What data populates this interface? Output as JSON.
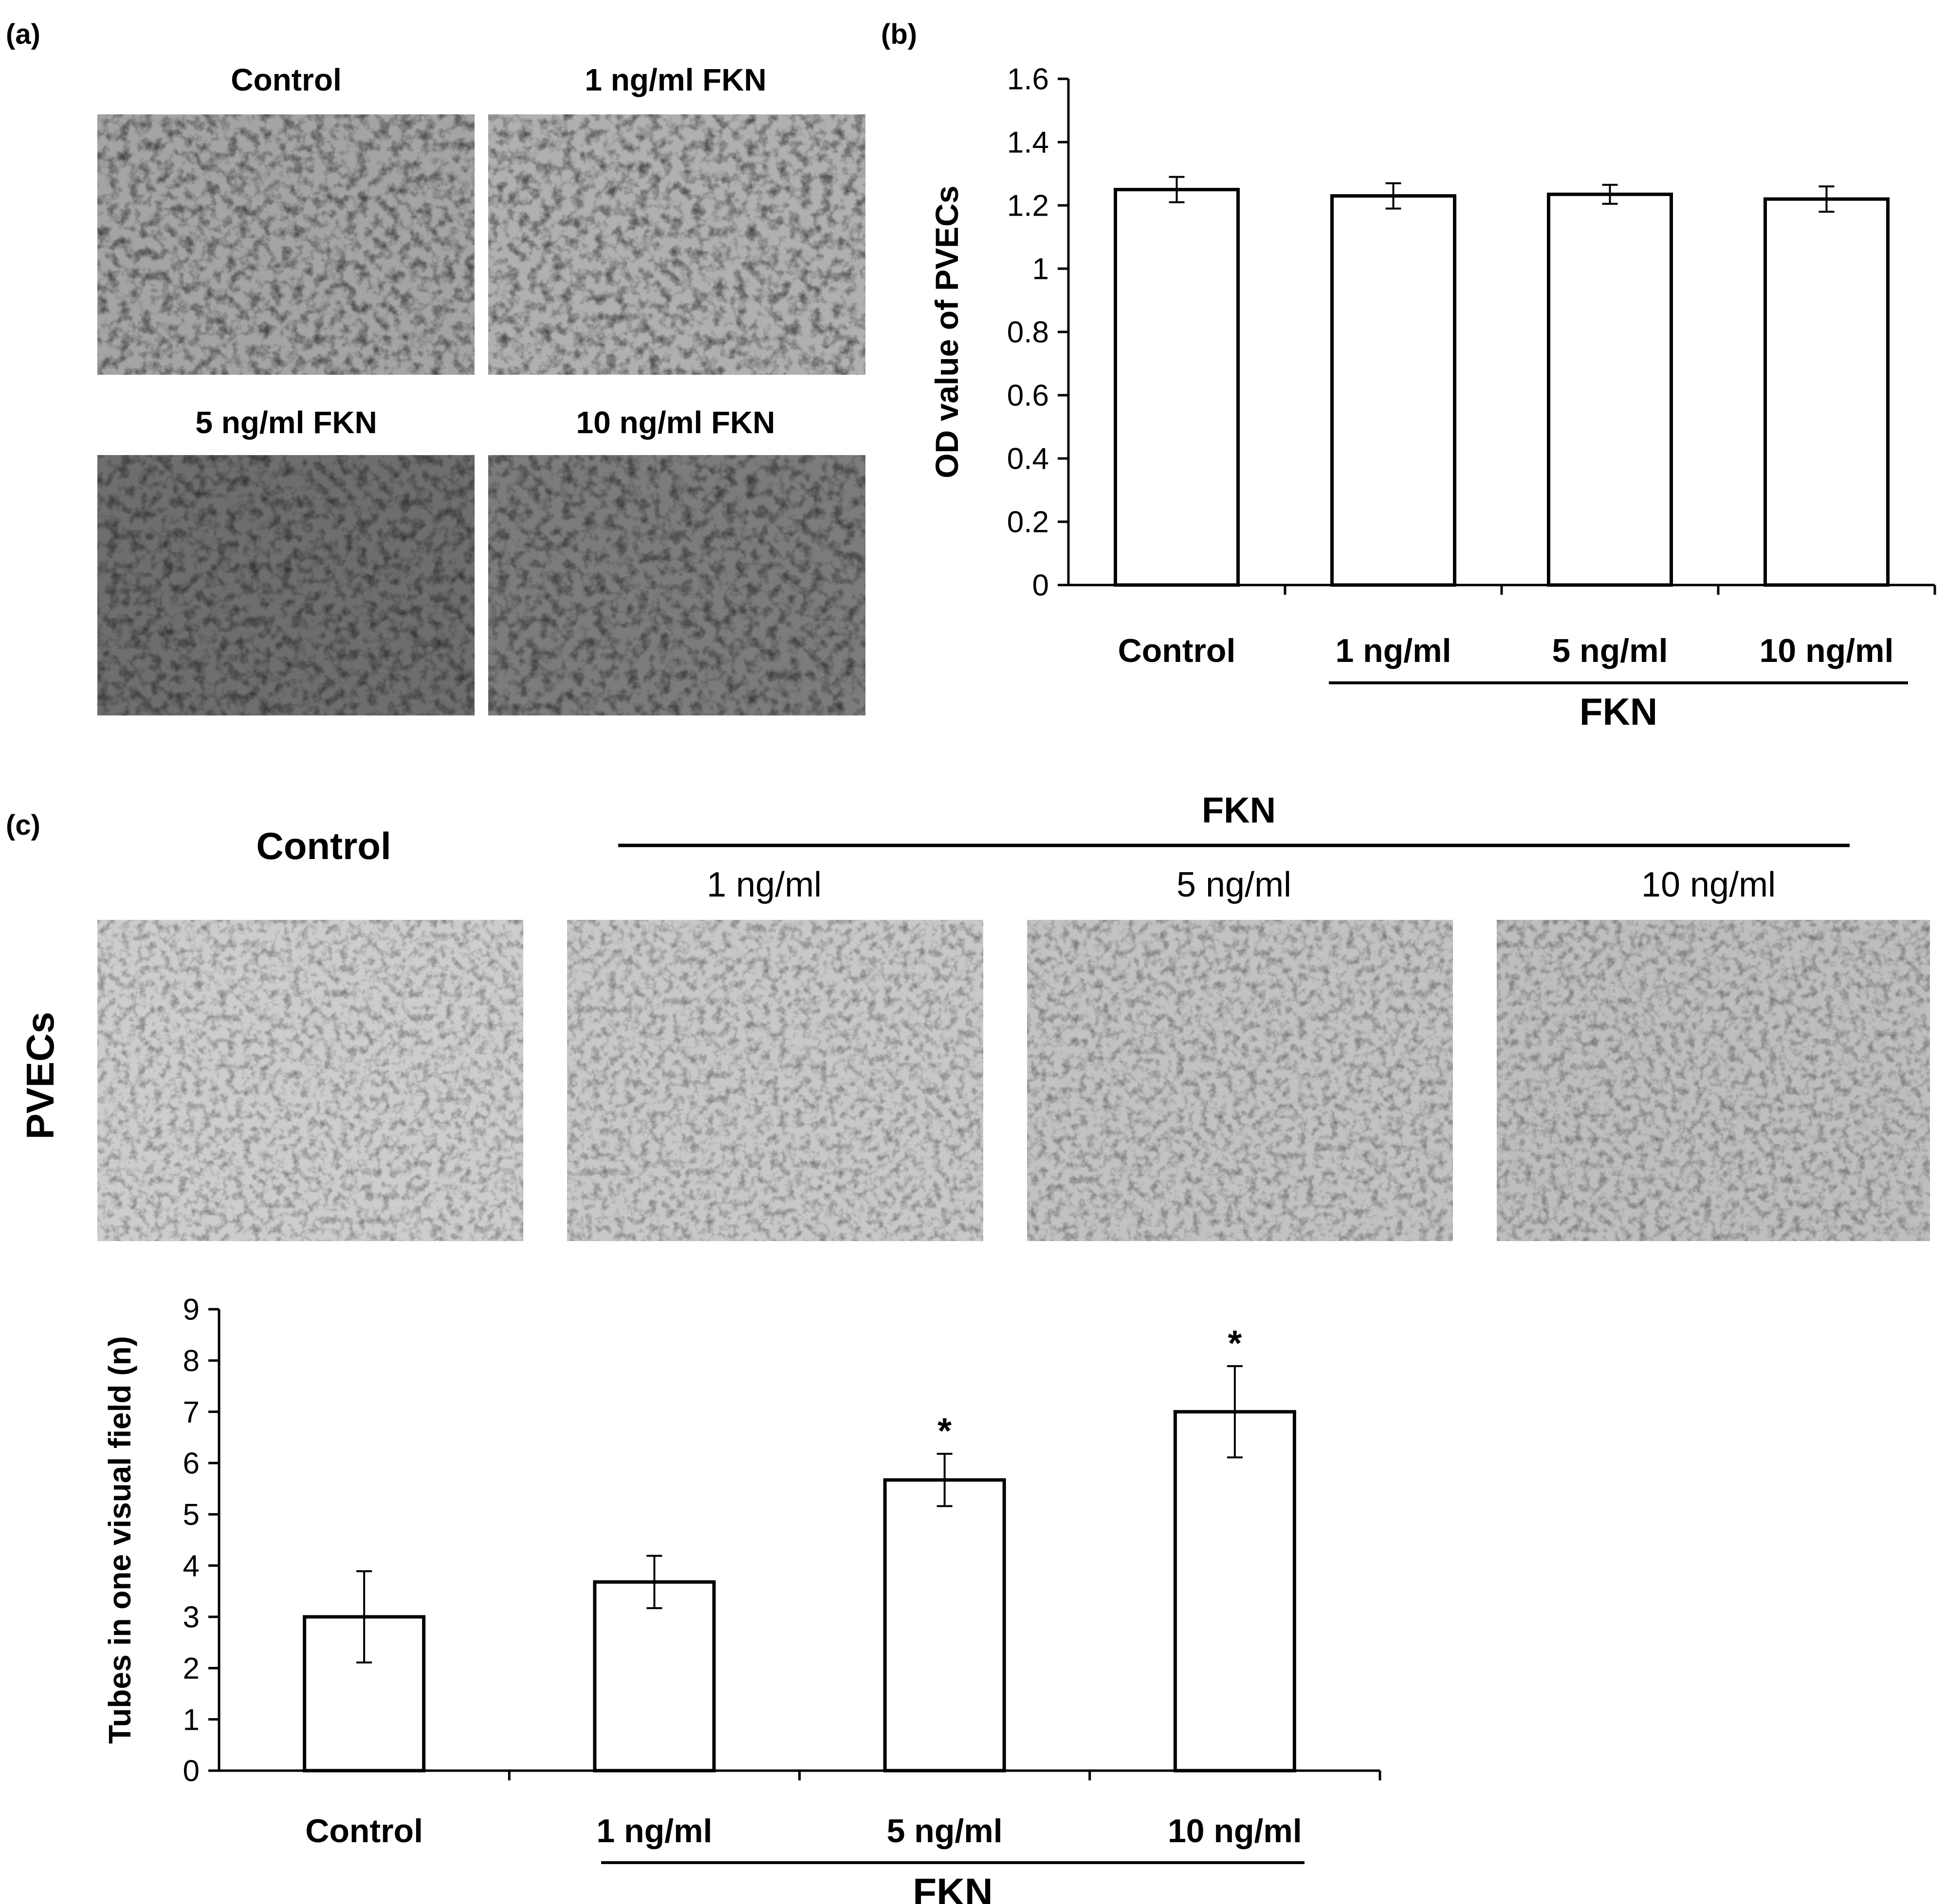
{
  "panels": {
    "a": {
      "label": "(a)",
      "images": [
        {
          "caption": "Control",
          "tone": "#a4a4a4"
        },
        {
          "caption": "1 ng/ml FKN",
          "tone": "#b0b0b0"
        },
        {
          "caption": "5 ng/ml FKN",
          "tone": "#6e6e6e"
        },
        {
          "caption": "10 ng/ml FKN",
          "tone": "#7c7c7c"
        }
      ]
    },
    "b": {
      "label": "(b)"
    },
    "c": {
      "label": "(c)",
      "control_label": "Control",
      "group_label": "FKN",
      "row_label": "PVECs",
      "images": [
        {
          "caption": "1 ng/ml",
          "tone": "#c8c8c8"
        },
        {
          "caption": "5 ng/ml",
          "tone": "#c2c2c2"
        },
        {
          "caption": "10 ng/ml",
          "tone": "#bebebe"
        }
      ],
      "control_tone": "#cdcdcd"
    }
  },
  "chart_data": [
    {
      "type": "bar",
      "panel": "b",
      "categories": [
        "Control",
        "1 ng/ml",
        "5 ng/ml",
        "10 ng/ml"
      ],
      "values": [
        1.25,
        1.23,
        1.235,
        1.22
      ],
      "errors": [
        0.04,
        0.04,
        0.03,
        0.04
      ],
      "ylabel": "OD value of PVECs",
      "ylim": [
        0,
        1.6
      ],
      "yticks": [
        "0",
        "0.2",
        "0.4",
        "0.6",
        "0.8",
        "1",
        "1.2",
        "1.4",
        "1.6"
      ],
      "group_label": "FKN",
      "bar_color": "#ffffff",
      "annotations": [
        "",
        "",
        "",
        ""
      ]
    },
    {
      "type": "bar",
      "panel": "c",
      "categories": [
        "Control",
        "1 ng/ml",
        "5 ng/ml",
        "10 ng/ml"
      ],
      "values": [
        3.0,
        3.68,
        5.67,
        7.0
      ],
      "errors": [
        0.89,
        0.51,
        0.51,
        0.89
      ],
      "ylabel": "Tubes in one visual field (n)",
      "ylim": [
        0,
        9
      ],
      "yticks": [
        "0",
        "1",
        "2",
        "3",
        "4",
        "5",
        "6",
        "7",
        "8",
        "9"
      ],
      "group_label": "FKN",
      "bar_color": "#ffffff",
      "annotations": [
        "",
        "",
        "*",
        "*"
      ]
    }
  ]
}
